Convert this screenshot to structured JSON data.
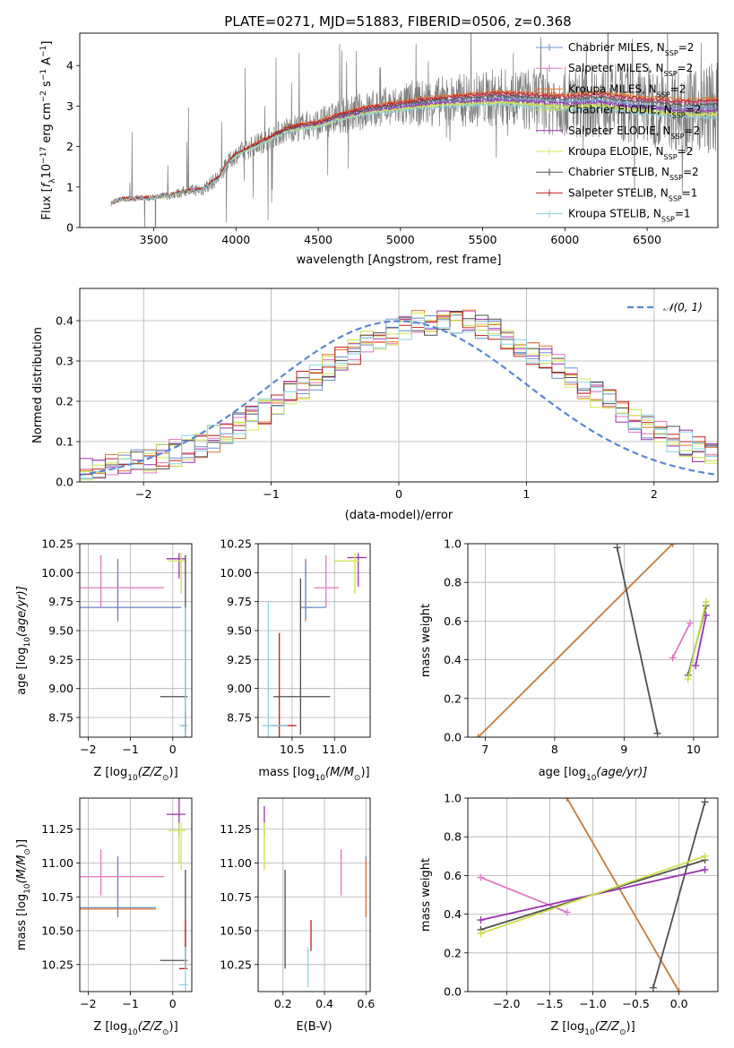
{
  "figure_title": "PLATE=0271, MJD=51883, FIBERID=0506, z=0.368",
  "colors": {
    "chabrier_miles": "#6b8fd6",
    "salpeter_miles": "#e377c2",
    "kroupa_miles": "#e8742a",
    "chabrier_elodie": "#c8e04a",
    "salpeter_elodie": "#9b30b0",
    "kroupa_elodie": "#d8e85a",
    "chabrier_stelib": "#505050",
    "salpeter_stelib": "#c0201e",
    "kroupa_stelib": "#8ad4e4",
    "data": "#7f7f7f",
    "normal": "#5b86d6",
    "mix_orange": "#c87b3a"
  },
  "legend_spectrum": [
    {
      "label": "Chabrier MILES, N",
      "sub": "SSP",
      "tail": "=2"
    },
    {
      "label": "Salpeter MILES, N",
      "sub": "SSP",
      "tail": "=2"
    },
    {
      "label": "Kroupa MILES, N",
      "sub": "SSP",
      "tail": "=2"
    },
    {
      "label": "Chabrier ELODIE, N",
      "sub": "SSP",
      "tail": "=2"
    },
    {
      "label": "Salpeter ELODIE, N",
      "sub": "SSP",
      "tail": "=2"
    },
    {
      "label": "Kroupa ELODIE, N",
      "sub": "SSP",
      "tail": "=2"
    },
    {
      "label": "Chabrier STELIB, N",
      "sub": "SSP",
      "tail": "=2"
    },
    {
      "label": "Salpeter STELIB, N",
      "sub": "SSP",
      "tail": "=1"
    },
    {
      "label": "Kroupa STELIB, N",
      "sub": "SSP",
      "tail": "=1"
    }
  ],
  "legend_hist": {
    "label": "𝒩(0, 1)"
  },
  "chart_data": [
    {
      "type": "line",
      "id": "spectrum",
      "xlabel": "wavelength [Angstrom, rest frame]",
      "ylabel_parts": [
        "Flux [",
        "f",
        "λ",
        "10",
        "−17",
        " erg cm",
        "−2",
        " s",
        "−1",
        " A",
        "−1",
        "]"
      ],
      "xlim": [
        3050,
        6930
      ],
      "ylim": [
        0,
        4.8
      ],
      "xticks": [
        3500,
        4000,
        4500,
        5000,
        5500,
        6000,
        6500
      ],
      "yticks": [
        0,
        1,
        2,
        3,
        4
      ],
      "model_x": [
        3240,
        3300,
        3400,
        3500,
        3600,
        3700,
        3800,
        3900,
        3950,
        4000,
        4100,
        4200,
        4300,
        4400,
        4500,
        4600,
        4700,
        4800,
        4900,
        5000,
        5200,
        5400,
        5600,
        5800,
        6000,
        6200,
        6400,
        6700
      ],
      "model_y": [
        0.6,
        0.7,
        0.72,
        0.74,
        0.8,
        0.9,
        0.95,
        1.25,
        1.6,
        1.8,
        2.0,
        2.2,
        2.4,
        2.5,
        2.55,
        2.7,
        2.8,
        2.9,
        2.95,
        3.0,
        3.1,
        3.15,
        3.2,
        3.15,
        3.1,
        3.15,
        3.05,
        2.95
      ],
      "grid": false
    },
    {
      "type": "line",
      "id": "residual-hist",
      "xlabel": "(data-model)/error",
      "ylabel": "Normed distribution",
      "xlim": [
        -2.5,
        2.5
      ],
      "ylim": [
        0,
        0.48
      ],
      "xticks": [
        -2,
        -1,
        0,
        1,
        2
      ],
      "yticks": [
        0.0,
        0.1,
        0.2,
        0.3,
        0.4
      ],
      "xtick_labels": [
        "−2",
        "−1",
        "0",
        "1",
        "2"
      ],
      "ytick_labels": [
        "0.0",
        "0.1",
        "0.2",
        "0.3",
        "0.4"
      ],
      "grid": true,
      "legend_position": "top-right"
    },
    {
      "type": "scatter",
      "id": "age-vs-Z",
      "xlabel": "Z [log",
      "xlabel_parts": [
        "Z [log",
        "10",
        "(Z/Z",
        "⊙",
        ")]"
      ],
      "ylabel_parts": [
        "age  [log",
        "10",
        "(age/yr)]"
      ],
      "xlim": [
        -2.2,
        0.45
      ],
      "ylim": [
        8.58,
        10.25
      ],
      "xticks": [
        -2,
        -1,
        0
      ],
      "xtick_labels": [
        "−2",
        "−1",
        "0"
      ],
      "yticks": [
        8.75,
        9.0,
        9.25,
        9.5,
        9.75,
        10.0,
        10.25
      ],
      "ytick_labels": [
        "8.75",
        "9.00",
        "9.25",
        "9.50",
        "9.75",
        "10.00",
        "10.25"
      ],
      "grid": true,
      "points": [
        {
          "series": "kroupa_miles",
          "x": -1.3,
          "y": 9.7,
          "xe": [
            -2.2,
            0.2
          ],
          "ye": [
            9.58,
            10.12
          ]
        },
        {
          "series": "chabrier_miles",
          "x": -1.3,
          "y": 9.7,
          "xe": [
            -2.2,
            0.2
          ],
          "ye": [
            9.6,
            10.1
          ]
        },
        {
          "series": "salpeter_miles",
          "x": -1.7,
          "y": 9.87,
          "xe": [
            -2.3,
            -0.2
          ],
          "ye": [
            9.7,
            10.15
          ]
        },
        {
          "series": "salpeter_elodie",
          "x": 0.15,
          "y": 10.12,
          "xe": [
            -0.15,
            0.3
          ],
          "ye": [
            9.95,
            10.17
          ]
        },
        {
          "series": "chabrier_elodie",
          "x": 0.2,
          "y": 10.1,
          "xe": [
            -0.1,
            0.3
          ],
          "ye": [
            9.82,
            10.17
          ]
        },
        {
          "series": "kroupa_elodie",
          "x": 0.2,
          "y": 10.1,
          "xe": [
            -0.1,
            0.3
          ],
          "ye": [
            9.9,
            10.17
          ]
        },
        {
          "series": "chabrier_stelib",
          "x": 0.3,
          "y": 8.93,
          "xe": [
            -0.3,
            0.35
          ],
          "ye": [
            8.6,
            10.15
          ]
        },
        {
          "series": "salpeter_stelib",
          "x": 0.3,
          "y": 8.68,
          "xe": [
            0.2,
            0.35
          ],
          "ye": [
            8.58,
            8.8
          ]
        },
        {
          "series": "kroupa_stelib",
          "x": 0.3,
          "y": 8.68,
          "xe": [
            0.15,
            0.35
          ],
          "ye": [
            8.58,
            9.7
          ]
        }
      ]
    },
    {
      "type": "scatter",
      "id": "age-vs-mass",
      "xlabel_parts": [
        "mass [log",
        "10",
        "(M/M",
        "⊙",
        ")]"
      ],
      "xlim": [
        10.1,
        11.42
      ],
      "ylim": [
        8.58,
        10.25
      ],
      "xticks": [
        10.5,
        11.0
      ],
      "xtick_labels": [
        "10.5",
        "11.0"
      ],
      "yticks": [
        8.75,
        9.0,
        9.25,
        9.5,
        9.75,
        10.0,
        10.25
      ],
      "ytick_labels": [
        "8.75",
        "9.00",
        "9.25",
        "9.50",
        "9.75",
        "10.00",
        "10.25"
      ],
      "grid": true,
      "points": [
        {
          "series": "kroupa_miles",
          "x": 10.66,
          "y": 9.7,
          "xe": [
            10.6,
            10.76
          ],
          "ye": [
            9.58,
            10.12
          ]
        },
        {
          "series": "chabrier_miles",
          "x": 10.66,
          "y": 9.7,
          "xe": [
            10.6,
            10.9
          ],
          "ye": [
            9.6,
            10.1
          ]
        },
        {
          "series": "salpeter_miles",
          "x": 10.9,
          "y": 9.87,
          "xe": [
            10.76,
            11.05
          ],
          "ye": [
            9.7,
            10.15
          ]
        },
        {
          "series": "salpeter_elodie",
          "x": 11.28,
          "y": 10.13,
          "xe": [
            11.15,
            11.38
          ],
          "ye": [
            9.88,
            10.17
          ]
        },
        {
          "series": "chabrier_elodie",
          "x": 11.24,
          "y": 10.1,
          "xe": [
            11.0,
            11.3
          ],
          "ye": [
            9.82,
            10.17
          ]
        },
        {
          "series": "kroupa_elodie",
          "x": 11.24,
          "y": 10.1,
          "xe": [
            11.0,
            11.3
          ],
          "ye": [
            9.9,
            10.17
          ]
        },
        {
          "series": "chabrier_stelib",
          "x": 10.6,
          "y": 8.93,
          "xe": [
            10.28,
            10.95
          ],
          "ye": [
            8.6,
            9.95
          ]
        },
        {
          "series": "salpeter_stelib",
          "x": 10.35,
          "y": 8.68,
          "xe": [
            10.25,
            10.55
          ],
          "ye": [
            8.58,
            9.48
          ]
        },
        {
          "series": "kroupa_stelib",
          "x": 10.22,
          "y": 8.68,
          "xe": [
            10.15,
            10.45
          ],
          "ye": [
            8.58,
            9.75
          ]
        }
      ]
    },
    {
      "type": "line",
      "id": "weight-vs-age",
      "xlabel_parts": [
        "age  [log",
        "10",
        "(age/yr)]"
      ],
      "ylabel": "mass weight",
      "xlim": [
        6.75,
        10.35
      ],
      "ylim": [
        0,
        1.0
      ],
      "xticks": [
        7,
        8,
        9,
        10
      ],
      "yticks": [
        0.0,
        0.2,
        0.4,
        0.6,
        0.8,
        1.0
      ],
      "ytick_labels": [
        "0.0",
        "0.2",
        "0.4",
        "0.6",
        "0.8",
        "1.0"
      ],
      "grid": true,
      "series": [
        {
          "series": "mix_orange",
          "x": [
            6.9,
            9.7
          ],
          "y": [
            0.0,
            1.0
          ]
        },
        {
          "series": "chabrier_stelib",
          "x": [
            8.9,
            9.48
          ],
          "y": [
            0.98,
            0.02
          ]
        },
        {
          "series": "salpeter_miles",
          "x": [
            9.7,
            9.95
          ],
          "y": [
            0.41,
            0.59
          ]
        },
        {
          "series": "salpeter_elodie",
          "x": [
            10.03,
            10.18
          ],
          "y": [
            0.37,
            0.63
          ]
        },
        {
          "series": "chabrier_stelib",
          "x": [
            9.92,
            10.18
          ],
          "y": [
            0.32,
            0.68
          ]
        },
        {
          "series": "chabrier_elodie",
          "x": [
            9.92,
            10.18
          ],
          "y": [
            0.3,
            0.7
          ]
        }
      ]
    },
    {
      "type": "scatter",
      "id": "mass-vs-Z",
      "xlabel_parts": [
        "Z [log",
        "10",
        "(Z/Z",
        "⊙",
        ")]"
      ],
      "ylabel_parts": [
        "mass [log",
        "10",
        "(M/M",
        "⊙",
        ")]"
      ],
      "xlim": [
        -2.2,
        0.45
      ],
      "ylim": [
        10.05,
        11.48
      ],
      "xticks": [
        -2,
        -1,
        0
      ],
      "xtick_labels": [
        "−2",
        "−1",
        "0"
      ],
      "yticks": [
        10.25,
        10.5,
        10.75,
        11.0,
        11.25
      ],
      "ytick_labels": [
        "10.25",
        "10.50",
        "10.75",
        "11.00",
        "11.25"
      ],
      "grid": true,
      "points": [
        {
          "series": "kroupa_miles",
          "x": -1.3,
          "y": 10.66,
          "xe": [
            -2.2,
            -0.4
          ],
          "ye": [
            10.6,
            11.05
          ]
        },
        {
          "series": "chabrier_miles",
          "x": -1.3,
          "y": 10.67,
          "xe": [
            -2.2,
            -0.4
          ],
          "ye": [
            10.6,
            11.05
          ]
        },
        {
          "series": "salpeter_miles",
          "x": -1.7,
          "y": 10.9,
          "xe": [
            -2.3,
            -0.2
          ],
          "ye": [
            10.76,
            11.1
          ]
        },
        {
          "series": "salpeter_elodie",
          "x": 0.15,
          "y": 11.36,
          "xe": [
            -0.15,
            0.3
          ],
          "ye": [
            11.2,
            11.48
          ]
        },
        {
          "series": "chabrier_elodie",
          "x": 0.15,
          "y": 11.24,
          "xe": [
            -0.1,
            0.3
          ],
          "ye": [
            11.0,
            11.3
          ]
        },
        {
          "series": "kroupa_elodie",
          "x": 0.2,
          "y": 11.24,
          "xe": [
            -0.1,
            0.3
          ],
          "ye": [
            10.95,
            11.3
          ]
        },
        {
          "series": "chabrier_stelib",
          "x": 0.3,
          "y": 10.28,
          "xe": [
            -0.3,
            0.35
          ],
          "ye": [
            10.22,
            10.95
          ]
        },
        {
          "series": "salpeter_stelib",
          "x": 0.3,
          "y": 10.22,
          "xe": [
            0.15,
            0.35
          ],
          "ye": [
            10.22,
            10.58
          ]
        },
        {
          "series": "kroupa_stelib",
          "x": 0.3,
          "y": 10.1,
          "xe": [
            0.15,
            0.35
          ],
          "ye": [
            10.05,
            10.38
          ]
        }
      ]
    },
    {
      "type": "scatter",
      "id": "mass-vs-ebv",
      "xlabel": "E(B-V)",
      "xlim": [
        0.08,
        0.62
      ],
      "ylim": [
        10.05,
        11.48
      ],
      "xticks": [
        0.2,
        0.4,
        0.6
      ],
      "xtick_labels": [
        "0.2",
        "0.4",
        "0.6"
      ],
      "yticks": [
        10.25,
        10.5,
        10.75,
        11.0,
        11.25
      ],
      "ytick_labels": [
        "10.25",
        "10.50",
        "10.75",
        "11.00",
        "11.25"
      ],
      "grid": true,
      "points": [
        {
          "series": "salpeter_elodie",
          "x": 0.11,
          "y": 11.36,
          "ye": [
            11.2,
            11.42
          ]
        },
        {
          "series": "chabrier_elodie",
          "x": 0.11,
          "y": 11.2,
          "ye": [
            10.95,
            11.3
          ]
        },
        {
          "series": "kroupa_elodie",
          "x": 0.11,
          "y": 11.2,
          "ye": [
            11.0,
            11.3
          ]
        },
        {
          "series": "chabrier_stelib",
          "x": 0.21,
          "y": 10.6,
          "ye": [
            10.22,
            10.95
          ]
        },
        {
          "series": "kroupa_stelib",
          "x": 0.32,
          "y": 10.25,
          "ye": [
            10.08,
            10.38
          ]
        },
        {
          "series": "salpeter_stelib",
          "x": 0.335,
          "y": 10.45,
          "ye": [
            10.35,
            10.58
          ]
        },
        {
          "series": "salpeter_miles",
          "x": 0.48,
          "y": 10.9,
          "ye": [
            10.76,
            11.1
          ]
        },
        {
          "series": "chabrier_miles",
          "x": 0.6,
          "y": 10.66,
          "ye": [
            10.6,
            11.05
          ]
        },
        {
          "series": "kroupa_miles",
          "x": 0.6,
          "y": 10.66,
          "ye": [
            10.6,
            11.02
          ]
        }
      ]
    },
    {
      "type": "line",
      "id": "weight-vs-Z",
      "xlabel_parts": [
        "Z [log",
        "10",
        "(Z/Z",
        "⊙",
        ")]"
      ],
      "ylabel": "mass weight",
      "xlim": [
        -2.45,
        0.45
      ],
      "ylim": [
        0,
        1.0
      ],
      "xticks": [
        -2.0,
        -1.5,
        -1.0,
        -0.5,
        0.0
      ],
      "xtick_labels": [
        "−2.0",
        "−1.5",
        "−1.0",
        "−0.5",
        "0.0"
      ],
      "yticks": [
        0.0,
        0.2,
        0.4,
        0.6,
        0.8,
        1.0
      ],
      "ytick_labels": [
        "0.0",
        "0.2",
        "0.4",
        "0.6",
        "0.8",
        "1.0"
      ],
      "grid": true,
      "series": [
        {
          "series": "mix_orange",
          "x": [
            -1.3,
            0.0
          ],
          "y": [
            1.0,
            0.0
          ]
        },
        {
          "series": "chabrier_stelib",
          "x": [
            -0.3,
            0.3
          ],
          "y": [
            0.02,
            0.98
          ]
        },
        {
          "series": "salpeter_miles",
          "x": [
            -2.3,
            -1.3
          ],
          "y": [
            0.59,
            0.41
          ]
        },
        {
          "series": "salpeter_elodie",
          "x": [
            -2.3,
            0.3
          ],
          "y": [
            0.37,
            0.63
          ]
        },
        {
          "series": "chabrier_stelib",
          "x": [
            -2.3,
            0.3
          ],
          "y": [
            0.32,
            0.68
          ]
        },
        {
          "series": "chabrier_elodie",
          "x": [
            -2.3,
            0.3
          ],
          "y": [
            0.3,
            0.7
          ]
        }
      ]
    }
  ]
}
